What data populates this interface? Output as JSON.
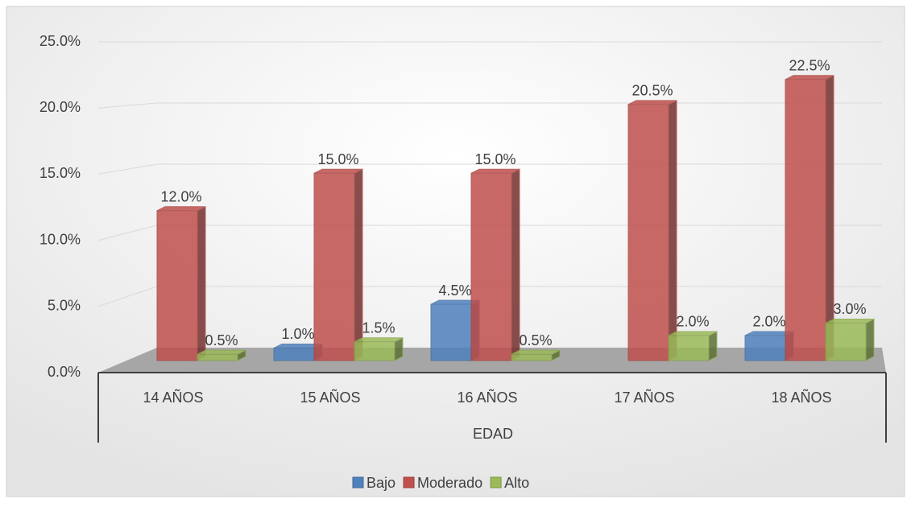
{
  "chart_data": {
    "type": "bar3d",
    "categories": [
      "14 AÑOS",
      "15 AÑOS",
      "16 AÑOS",
      "17 AÑOS",
      "18 AÑOS"
    ],
    "x_label": "EDAD",
    "series": [
      {
        "name": "Bajo",
        "color": "#4f81bd",
        "values": [
          null,
          1.0,
          4.5,
          null,
          2.0
        ],
        "value_labels": [
          null,
          "1.0%",
          "4.5%",
          null,
          "2.0%"
        ]
      },
      {
        "name": "Moderado",
        "color": "#c0504d",
        "values": [
          12.0,
          15.0,
          15.0,
          20.5,
          22.5
        ],
        "value_labels": [
          "12.0%",
          "15.0%",
          "15.0%",
          "20.5%",
          "22.5%"
        ]
      },
      {
        "name": "Alto",
        "color": "#9bbb59",
        "values": [
          0.5,
          1.5,
          0.5,
          2.0,
          3.0
        ],
        "value_labels": [
          "0.5%",
          "1.5%",
          "0.5%",
          "2.0%",
          "3.0%"
        ]
      }
    ],
    "ylim": [
      0,
      25
    ],
    "yticks": [
      {
        "value": 0,
        "label": "0.0%"
      },
      {
        "value": 5,
        "label": "5.0%"
      },
      {
        "value": 10,
        "label": "10.0%"
      },
      {
        "value": 15,
        "label": "15.0%"
      },
      {
        "value": 20,
        "label": "20.0%"
      },
      {
        "value": 25,
        "label": "25.0%"
      }
    ],
    "grid": true,
    "legend": "bottom"
  }
}
